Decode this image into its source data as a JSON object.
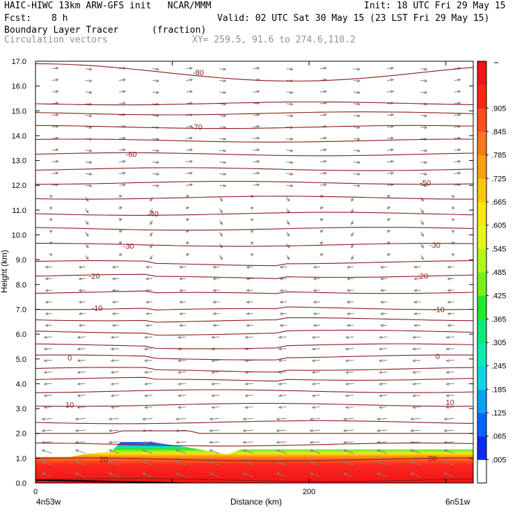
{
  "header": {
    "title_left": "HAIC-HIWC 13km ARW-GFS init   NCAR/MMM",
    "init": "Init: 18 UTC Fri 29 May 15",
    "fcst_label": "Fcst:",
    "fcst_value": "8 h",
    "valid": "Valid: 02 UTC Sat 30 May 15 (23 LST Fri 29 May 15)",
    "field_name": "Boundary Layer Tracer",
    "field_units": "(fraction)",
    "vectors_label": "Circulation vectors",
    "xy_label": "XY= 259.5, 91.6 to 274.6,110.2"
  },
  "colors": {
    "contour": "#8b1a1a",
    "vector": "#7f7f7f",
    "colorbar": [
      "#ffffff",
      "#0a2cf0",
      "#0a64f5",
      "#0fa0f5",
      "#14d2e6",
      "#14e6b4",
      "#14e67a",
      "#28e628",
      "#78ef1e",
      "#b4f51e",
      "#e6f51e",
      "#fae614",
      "#fac814",
      "#faa014",
      "#fa781e",
      "#fa501e",
      "#f52814",
      "#f01414"
    ]
  },
  "chart_data": {
    "type": "cross-section",
    "xlabel": "Distance (km)",
    "ylabel": "Height (km)",
    "xlim": [
      0,
      320
    ],
    "ylim": [
      0,
      17
    ],
    "x_ticks": [
      0,
      200
    ],
    "x_tick_labels": [
      "0",
      "200"
    ],
    "x_endpoints": [
      "4n53w",
      "6n51w"
    ],
    "y_ticks": [
      0,
      1,
      2,
      3,
      4,
      5,
      6,
      7,
      8,
      9,
      10,
      11,
      12,
      13,
      14,
      15,
      16,
      17
    ],
    "y_tick_labels": [
      "0.0",
      "1.0",
      "2.0",
      "3.0",
      "4.0",
      "5.0",
      "6.0",
      "7.0",
      "8.0",
      "9.0",
      "10.0",
      "11.0",
      "12.0",
      "13.0",
      "14.0",
      "15.0",
      "16.0",
      "17.0"
    ],
    "colorbar_labels": [
      ".005",
      ".065",
      ".125",
      ".185",
      ".245",
      ".305",
      ".365",
      ".425",
      ".485",
      ".545",
      ".605",
      ".665",
      ".725",
      ".785",
      ".845",
      ".905"
    ],
    "temperature_contour_labels": [
      {
        "text": "20",
        "x": 50,
        "y": 0.95
      },
      {
        "text": "20",
        "x": 290,
        "y": 1.0
      },
      {
        "text": "10",
        "x": 25,
        "y": 3.15
      },
      {
        "text": "10",
        "x": 303,
        "y": 3.25
      },
      {
        "text": "0",
        "x": 25,
        "y": 5.05
      },
      {
        "text": "0",
        "x": 294,
        "y": 5.1
      },
      {
        "text": "-10",
        "x": 45,
        "y": 7.05
      },
      {
        "text": "-10",
        "x": 295,
        "y": 7.0
      },
      {
        "text": "-20",
        "x": 43,
        "y": 8.35
      },
      {
        "text": "-20",
        "x": 283,
        "y": 8.35
      },
      {
        "text": "-30",
        "x": 68,
        "y": 9.55
      },
      {
        "text": "-30",
        "x": 292,
        "y": 9.6
      },
      {
        "text": "-40",
        "x": 86,
        "y": 10.85
      },
      {
        "text": "-50",
        "x": 285,
        "y": 12.1
      },
      {
        "text": "-60",
        "x": 70,
        "y": 13.25
      },
      {
        "text": "-70",
        "x": 118,
        "y": 14.35
      },
      {
        "text": "-80",
        "x": 119,
        "y": 16.55
      }
    ],
    "temperature_contour_levels": [
      0.12,
      0.95,
      1.55,
      2.05,
      2.45,
      3.15,
      3.7,
      4.2,
      4.6,
      5.1,
      5.55,
      6.1,
      6.6,
      7.05,
      7.7,
      8.35,
      8.9,
      9.6,
      10.25,
      10.85,
      11.5,
      12.1,
      12.65,
      13.25,
      13.8,
      14.35,
      14.9,
      15.3,
      16.55
    ],
    "boundary_layer_top_km": [
      {
        "x": 0,
        "y": 1.05
      },
      {
        "x": 25,
        "y": 1.05
      },
      {
        "x": 40,
        "y": 1.2
      },
      {
        "x": 55,
        "y": 1.25
      },
      {
        "x": 62,
        "y": 1.65
      },
      {
        "x": 85,
        "y": 1.65
      },
      {
        "x": 110,
        "y": 1.45
      },
      {
        "x": 130,
        "y": 1.25
      },
      {
        "x": 140,
        "y": 1.15
      },
      {
        "x": 150,
        "y": 1.35
      },
      {
        "x": 180,
        "y": 1.35
      },
      {
        "x": 240,
        "y": 1.35
      },
      {
        "x": 320,
        "y": 1.35
      }
    ]
  }
}
